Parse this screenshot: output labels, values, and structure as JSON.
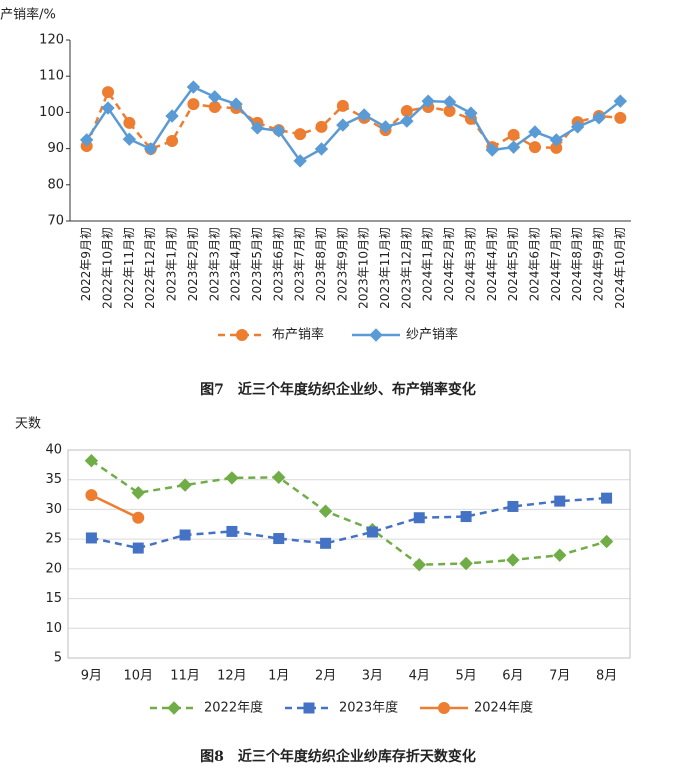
{
  "chart_data": [
    {
      "type": "line",
      "y_label": "产销率/%",
      "categories": [
        "2022年9月初",
        "2022年10月初",
        "2022年11月初",
        "2022年12月初",
        "2023年1月初",
        "2023年2月初",
        "2023年3月初",
        "2023年4月初",
        "2023年5月初",
        "2023年6月初",
        "2023年7月初",
        "2023年8月初",
        "2023年9月初",
        "2023年10月初",
        "2023年11月初",
        "2023年12月初",
        "2024年1月初",
        "2024年2月初",
        "2024年3月初",
        "2024年4月初",
        "2024年5月初",
        "2024年6月初",
        "2024年7月初",
        "2024年8月初",
        "2024年9月初",
        "2024年10月初"
      ],
      "series": [
        {
          "name": "布产销率",
          "color": "#ed7d31",
          "line_style": "dashed",
          "marker": "circle",
          "values": [
            90.7,
            105.6,
            97.1,
            89.9,
            92.1,
            102.3,
            101.5,
            101.2,
            97.1,
            95.1,
            94.0,
            96.0,
            101.8,
            98.5,
            95.1,
            100.4,
            101.5,
            100.4,
            98.2,
            90.4,
            93.8,
            90.4,
            90.2,
            97.3,
            99.0,
            98.5
          ]
        },
        {
          "name": "纱产销率",
          "color": "#5b9bd5",
          "line_style": "solid",
          "marker": "diamond",
          "values": [
            92.4,
            101.2,
            92.6,
            89.9,
            99.0,
            107.0,
            104.3,
            102.3,
            95.7,
            94.9,
            86.6,
            89.9,
            96.5,
            99.3,
            96.0,
            97.6,
            103.1,
            102.9,
            99.8,
            89.6,
            90.4,
            94.6,
            92.4,
            96.0,
            98.5,
            103.1
          ]
        }
      ],
      "ylim": [
        70,
        120
      ],
      "yticks": [
        70,
        80,
        90,
        100,
        110,
        120
      ],
      "grid": false,
      "legend": "bottom",
      "caption": "图7　近三个年度纺织企业纱、布产销率变化"
    },
    {
      "type": "line",
      "y_label": "天数",
      "categories": [
        "9月",
        "10月",
        "11月",
        "12月",
        "1月",
        "2月",
        "3月",
        "4月",
        "5月",
        "6月",
        "7月",
        "8月"
      ],
      "series": [
        {
          "name": "2022年度",
          "color": "#70ad47",
          "line_style": "dashed",
          "marker": "diamond",
          "values": [
            38.2,
            32.8,
            34.1,
            35.3,
            35.4,
            29.7,
            26.6,
            20.7,
            20.9,
            21.5,
            22.3,
            24.6
          ]
        },
        {
          "name": "2023年度",
          "color": "#4472c4",
          "line_style": "dashed",
          "marker": "square",
          "values": [
            25.2,
            23.5,
            25.7,
            26.3,
            25.1,
            24.3,
            26.2,
            28.6,
            28.8,
            30.5,
            31.4,
            31.9
          ]
        },
        {
          "name": "2024年度",
          "color": "#ed7d31",
          "line_style": "solid",
          "marker": "circle",
          "values": [
            32.4,
            28.6,
            null,
            null,
            null,
            null,
            null,
            null,
            null,
            null,
            null,
            null
          ]
        }
      ],
      "ylim": [
        5,
        40
      ],
      "yticks": [
        5,
        10,
        15,
        20,
        25,
        30,
        35,
        40
      ],
      "grid": true,
      "legend": "bottom",
      "caption": "图8　近三个年度纺织企业纱库存折天数变化"
    }
  ]
}
